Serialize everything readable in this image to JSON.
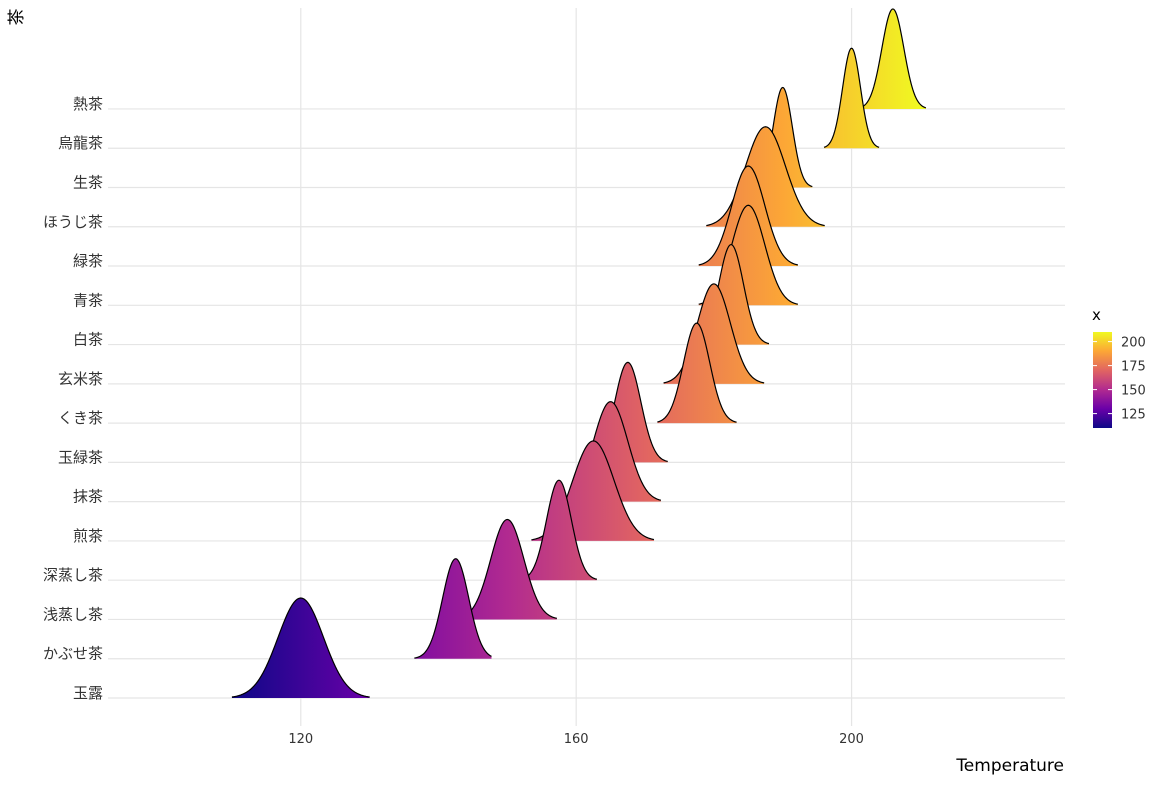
{
  "chart_data": {
    "type": "ridgeline",
    "title": "",
    "xlabel": "Temperature",
    "ylabel": "茶",
    "xlim": [
      92,
      231
    ],
    "x_ticks": [
      120,
      160,
      200
    ],
    "grid": true,
    "legend": {
      "title": "x",
      "position": "right",
      "type": "colorbar",
      "ticks": [
        125,
        150,
        175,
        200
      ],
      "range": [
        110,
        210
      ],
      "colors": [
        "#0d0887",
        "#6a00a8",
        "#b12a90",
        "#e16462",
        "#fca636",
        "#f0f921"
      ]
    },
    "series": [
      {
        "name": "玉露",
        "mean": 120,
        "sd": 3.3,
        "min": 110,
        "max": 130
      },
      {
        "name": "かぶせ茶",
        "mean": 142.5,
        "sd": 1.9,
        "min": 136.5,
        "max": 147.7
      },
      {
        "name": "浅蒸し茶",
        "mean": 150,
        "sd": 2.4,
        "min": 142.5,
        "max": 157.2
      },
      {
        "name": "深蒸し茶",
        "mean": 157.5,
        "sd": 1.8,
        "min": 152,
        "max": 163
      },
      {
        "name": "煎茶",
        "mean": 162.5,
        "sd": 3.0,
        "min": 153.5,
        "max": 171.3
      },
      {
        "name": "抹茶",
        "mean": 165,
        "sd": 2.5,
        "min": 157.5,
        "max": 172.3
      },
      {
        "name": "玉緑茶",
        "mean": 167.5,
        "sd": 1.9,
        "min": 161.8,
        "max": 173.3
      },
      {
        "name": "くき茶",
        "mean": 177.5,
        "sd": 1.9,
        "min": 171.8,
        "max": 183.3
      },
      {
        "name": "玄米茶",
        "mean": 180,
        "sd": 2.4,
        "min": 172.7,
        "max": 187.3
      },
      {
        "name": "白茶",
        "mean": 182.5,
        "sd": 1.8,
        "min": 177,
        "max": 188
      },
      {
        "name": "青茶",
        "mean": 185,
        "sd": 2.4,
        "min": 177.8,
        "max": 192.2
      },
      {
        "name": "緑茶",
        "mean": 185,
        "sd": 2.4,
        "min": 177.8,
        "max": 192.2
      },
      {
        "name": "ほうじ茶",
        "mean": 187.5,
        "sd": 2.9,
        "min": 178.9,
        "max": 196.1
      },
      {
        "name": "生茶",
        "mean": 190,
        "sd": 1.4,
        "min": 185.7,
        "max": 194.3
      },
      {
        "name": "烏龍茶",
        "mean": 200,
        "sd": 1.3,
        "min": 196,
        "max": 204
      },
      {
        "name": "熱茶",
        "mean": 206,
        "sd": 1.6,
        "min": 201.2,
        "max": 210.8
      }
    ]
  }
}
